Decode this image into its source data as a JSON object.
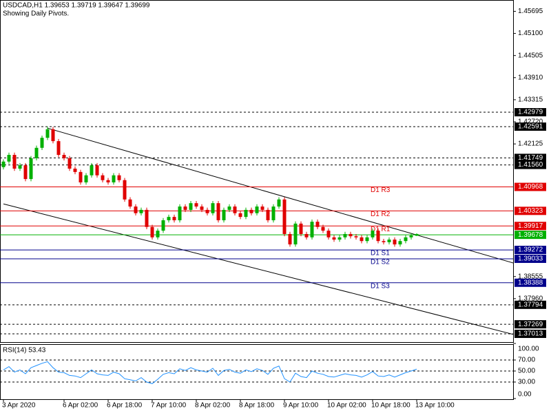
{
  "chart_data": [
    {
      "type": "candlestick",
      "title": "USDCAD,H1  1.39653 1.39719 1.39647 1.39699",
      "subtitle": "Showing Daily Pivots.",
      "categories": [
        "3 Apr 2020",
        null,
        null,
        null,
        null,
        null,
        null,
        null,
        null,
        null,
        null,
        "6 Apr 02:00",
        null,
        null,
        null,
        null,
        null,
        null,
        null,
        "6 Apr 18:00",
        null,
        null,
        null,
        null,
        null,
        null,
        null,
        "7 Apr 10:00",
        null,
        null,
        null,
        null,
        null,
        null,
        null,
        "8 Apr 02:00",
        null,
        null,
        null,
        null,
        null,
        null,
        null,
        "8 Apr 18:00",
        null,
        null,
        null,
        null,
        null,
        null,
        null,
        "9 Apr 10:00",
        null,
        null,
        null,
        null,
        null,
        null,
        null,
        "10 Apr 02:00",
        null,
        null,
        null,
        null,
        null,
        null,
        null,
        "10 Apr 18:00",
        null,
        null,
        null,
        null,
        null,
        null,
        null,
        "13 Apr 10:00"
      ],
      "open": [
        1.415,
        1.4165,
        1.4183,
        1.4146,
        1.4155,
        1.4118,
        1.4174,
        1.4202,
        1.4229,
        1.4252,
        1.422,
        1.4183,
        1.4174,
        1.4146,
        1.4137,
        1.4109,
        1.4128,
        1.4155,
        1.4128,
        1.4115,
        1.4109,
        1.4128,
        1.4115,
        1.4063,
        1.4044,
        1.4026,
        1.4035,
        1.3989,
        1.3961,
        1.3979,
        1.4007,
        1.4016,
        1.4007,
        1.4044,
        1.4035,
        1.4053,
        1.4044,
        1.4035,
        1.4026,
        1.4053,
        1.4007,
        1.4035,
        1.4044,
        1.4026,
        1.4016,
        1.4035,
        1.4026,
        1.4044,
        1.4035,
        1.4007,
        1.4044,
        1.4063,
        1.397,
        1.3942,
        1.3998,
        1.397,
        1.3961,
        1.4003,
        1.3989,
        1.3979,
        1.3961,
        1.3955,
        1.3961,
        1.397,
        1.3964,
        1.3961,
        1.3951,
        1.3961,
        1.3979,
        1.3951,
        1.3948,
        1.3955,
        1.3942,
        1.3951,
        1.3961,
        1.39653
      ],
      "high": [
        1.4171,
        1.4189,
        1.4189,
        1.4161,
        1.4161,
        1.418,
        1.4208,
        1.4235,
        1.4259,
        1.4258,
        1.4226,
        1.4189,
        1.418,
        1.4152,
        1.4143,
        1.4134,
        1.4161,
        1.4161,
        1.4134,
        1.4121,
        1.4134,
        1.4134,
        1.4121,
        1.4069,
        1.405,
        1.4041,
        1.4041,
        1.3995,
        1.3985,
        1.4013,
        1.4022,
        1.4022,
        1.405,
        1.405,
        1.4059,
        1.4059,
        1.405,
        1.4041,
        1.4059,
        1.4059,
        1.4041,
        1.405,
        1.405,
        1.4032,
        1.4041,
        1.4041,
        1.405,
        1.405,
        1.4041,
        1.405,
        1.4069,
        1.4069,
        1.3976,
        1.4004,
        1.4004,
        1.3976,
        1.4009,
        1.4009,
        1.3995,
        1.3985,
        1.3967,
        1.3967,
        1.3976,
        1.3976,
        1.397,
        1.3967,
        1.3967,
        1.3985,
        1.3985,
        1.3957,
        1.3961,
        1.3961,
        1.3957,
        1.3967,
        1.3972,
        1.39719
      ],
      "low": [
        1.4144,
        1.4159,
        1.414,
        1.414,
        1.4112,
        1.4112,
        1.4168,
        1.4196,
        1.4223,
        1.4214,
        1.4177,
        1.4168,
        1.414,
        1.4131,
        1.4103,
        1.4103,
        1.4122,
        1.4122,
        1.4109,
        1.4103,
        1.4103,
        1.4109,
        1.4057,
        1.4038,
        1.402,
        1.402,
        1.3983,
        1.3955,
        1.3955,
        1.3973,
        1.4001,
        1.4001,
        1.4001,
        1.4029,
        1.4029,
        1.4038,
        1.4029,
        1.402,
        1.402,
        1.4001,
        1.4001,
        1.4029,
        1.402,
        1.401,
        1.401,
        1.402,
        1.402,
        1.4029,
        1.4001,
        1.4001,
        1.4038,
        1.3964,
        1.3936,
        1.3936,
        1.3964,
        1.3955,
        1.3955,
        1.3983,
        1.3973,
        1.3955,
        1.3949,
        1.3949,
        1.3955,
        1.3958,
        1.3955,
        1.3945,
        1.3945,
        1.3955,
        1.3945,
        1.3942,
        1.3942,
        1.3936,
        1.3936,
        1.3945,
        1.3955,
        1.39647
      ],
      "close": [
        1.4165,
        1.4183,
        1.4146,
        1.4155,
        1.4118,
        1.4174,
        1.4202,
        1.4229,
        1.4252,
        1.422,
        1.4183,
        1.4174,
        1.4146,
        1.4137,
        1.4109,
        1.4128,
        1.4155,
        1.4128,
        1.4115,
        1.4109,
        1.4128,
        1.4115,
        1.4063,
        1.4044,
        1.4026,
        1.4035,
        1.3989,
        1.3961,
        1.3979,
        1.4007,
        1.4016,
        1.4007,
        1.4044,
        1.4035,
        1.4053,
        1.4044,
        1.4035,
        1.4026,
        1.4053,
        1.4007,
        1.4035,
        1.4044,
        1.4026,
        1.4016,
        1.4035,
        1.4026,
        1.4044,
        1.4035,
        1.4007,
        1.4044,
        1.4063,
        1.397,
        1.3942,
        1.3998,
        1.397,
        1.3961,
        1.4003,
        1.3989,
        1.3979,
        1.3961,
        1.3955,
        1.3961,
        1.397,
        1.3964,
        1.3961,
        1.3951,
        1.3961,
        1.3979,
        1.3951,
        1.3948,
        1.3955,
        1.3942,
        1.3951,
        1.3961,
        1.3966,
        1.39699
      ],
      "up_color": "#00b000",
      "down_color": "#e00000",
      "ylim": [
        1.3679,
        1.46
      ],
      "yticks": [
        1.45695,
        {
          "value": 1.451,
          "label": "1.45100"
        },
        1.44505,
        {
          "value": 1.4391,
          "label": "1.43910"
        },
        1.43315,
        {
          "value": 1.4272,
          "label": "1.42720"
        },
        1.42125,
        1.38555,
        {
          "value": 1.3796,
          "label": "1.37960"
        }
      ],
      "levels": [
        {
          "price": 1.42979,
          "color": "#000000",
          "dashed": true
        },
        {
          "price": 1.42591,
          "color": "#000000",
          "dashed": true
        },
        {
          "price": 1.41749,
          "color": "#000000",
          "dashed": true
        },
        {
          "price": {
            "value": 1.4156,
            "label": "1.41560"
          },
          "color": "#000000",
          "dashed": true
        },
        {
          "price": 1.40968,
          "color": "#e00000",
          "dashed": false,
          "name": "D1 R3"
        },
        {
          "price": 1.40323,
          "color": "#e00000",
          "dashed": false,
          "name": "D1 R2"
        },
        {
          "price": 1.39917,
          "color": "#e00000",
          "dashed": false,
          "name": "D1 R1"
        },
        {
          "price": 1.39678,
          "color": "#00b000",
          "dashed": false
        },
        {
          "price": 1.39272,
          "color": "#00008b",
          "dashed": false,
          "name": "D1 S1"
        },
        {
          "price": 1.39033,
          "color": "#00008b",
          "dashed": false,
          "name": "D1 S2"
        },
        {
          "price": 1.38388,
          "color": "#00008b",
          "dashed": false,
          "name": "D1 S3"
        },
        {
          "price": 1.37794,
          "color": "#000000",
          "dashed": true
        },
        {
          "price": 1.37269,
          "color": "#000000",
          "dashed": true
        },
        {
          "price": 1.37013,
          "color": "#000000",
          "dashed": true
        }
      ],
      "trendlines": [
        {
          "x": [
            8,
            93
          ],
          "y": [
            1.4255,
            1.389
          ]
        },
        {
          "x": [
            0,
            93
          ],
          "y": [
            1.4051,
            1.3698
          ]
        }
      ]
    },
    {
      "type": "line",
      "title": "RSI(14) 53.43",
      "color": "#1e90ff",
      "values": [
        52,
        58,
        48,
        52,
        45,
        56,
        60,
        64,
        67,
        56,
        48,
        47,
        42,
        41,
        38,
        45,
        52,
        45,
        43,
        42,
        48,
        45,
        36,
        34,
        32,
        38,
        30,
        27,
        35,
        44,
        47,
        45,
        54,
        51,
        56,
        52,
        50,
        48,
        55,
        42,
        51,
        53,
        48,
        46,
        52,
        49,
        54,
        51,
        44,
        55,
        59,
        36,
        30,
        46,
        40,
        38,
        50,
        46,
        44,
        40,
        39,
        42,
        45,
        43,
        42,
        39,
        43,
        49,
        41,
        40,
        43,
        39,
        43,
        47,
        50,
        53.43
      ],
      "ylim": [
        0,
        100
      ],
      "yticks": [
        {
          "value": 100,
          "label": "100.00"
        },
        {
          "value": 70,
          "label": "70.00"
        },
        {
          "value": 50,
          "label": "50.00"
        },
        {
          "value": 30,
          "label": "30.00"
        },
        {
          "value": 0,
          "label": "0.00"
        }
      ]
    }
  ]
}
